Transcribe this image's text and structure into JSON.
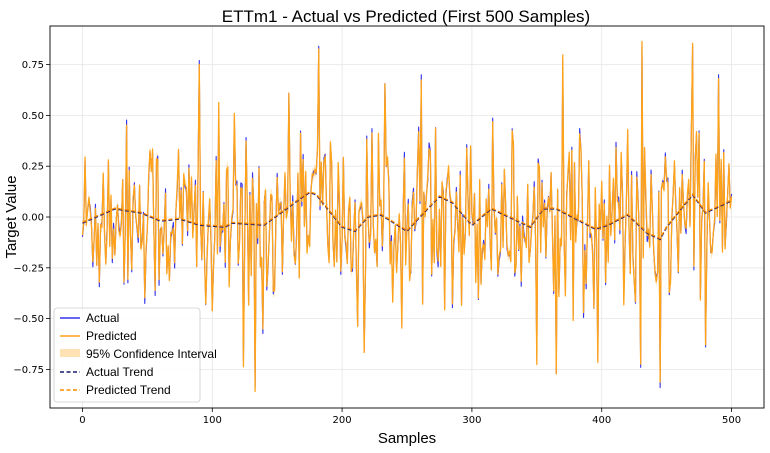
{
  "chart_data": {
    "type": "line",
    "title": "ETTm1 - Actual vs Predicted (First 500 Samples)",
    "xlabel": "Samples",
    "ylabel": "Target Value",
    "xlim": [
      -25,
      525
    ],
    "ylim": [
      -0.94,
      0.94
    ],
    "xticks": [
      0,
      100,
      200,
      300,
      400,
      500
    ],
    "yticks": [
      -0.75,
      -0.5,
      -0.25,
      0.0,
      0.25,
      0.5,
      0.75
    ],
    "ytick_labels": [
      "−0.75",
      "−0.50",
      "−0.25",
      "0.00",
      "0.25",
      "0.50",
      "0.75"
    ],
    "xtick_labels": [
      "0",
      "100",
      "200",
      "300",
      "400",
      "500"
    ],
    "grid": true,
    "legend_position": "lower-left",
    "n_samples": 500,
    "actual_noise_std": 0.22,
    "ci_half_width": 0.03,
    "colors": {
      "actual": "#3333ee",
      "predicted": "#ffa31a",
      "ci": "#ffe2b3",
      "actual_trend": "#1a1a6e",
      "predicted_trend": "#ff8c00"
    },
    "trend_key_points": {
      "x": [
        0,
        25,
        45,
        60,
        75,
        90,
        110,
        115,
        140,
        170,
        175,
        180,
        200,
        210,
        220,
        230,
        250,
        260,
        275,
        285,
        300,
        315,
        325,
        345,
        355,
        365,
        380,
        395,
        405,
        420,
        435,
        445,
        450,
        470,
        480,
        500
      ],
      "y": [
        -0.03,
        0.04,
        0.02,
        -0.02,
        -0.01,
        -0.04,
        -0.05,
        -0.03,
        -0.04,
        0.1,
        0.12,
        0.11,
        -0.05,
        -0.07,
        0.0,
        0.01,
        -0.07,
        0.0,
        0.1,
        0.07,
        -0.04,
        0.04,
        0.01,
        -0.05,
        0.04,
        0.04,
        -0.01,
        -0.06,
        -0.04,
        0.01,
        -0.08,
        -0.11,
        -0.05,
        0.11,
        0.02,
        0.08
      ]
    },
    "extreme_points": [
      {
        "x": 90,
        "y": 0.77
      },
      {
        "x": 100,
        "y": -0.46
      },
      {
        "x": 124,
        "y": -0.71
      },
      {
        "x": 133,
        "y": -0.84
      },
      {
        "x": 182,
        "y": 0.84
      },
      {
        "x": 217,
        "y": -0.66
      },
      {
        "x": 272,
        "y": 0.44
      },
      {
        "x": 365,
        "y": -0.77
      },
      {
        "x": 370,
        "y": 0.77
      },
      {
        "x": 430,
        "y": -0.74
      },
      {
        "x": 431,
        "y": 0.84
      },
      {
        "x": 445,
        "y": -0.84
      },
      {
        "x": 470,
        "y": 0.84
      },
      {
        "x": 480,
        "y": -0.64
      }
    ],
    "series": [
      {
        "name": "Actual"
      },
      {
        "name": "Predicted"
      },
      {
        "name": "95% Confidence Interval"
      },
      {
        "name": "Actual Trend"
      },
      {
        "name": "Predicted Trend"
      }
    ]
  }
}
